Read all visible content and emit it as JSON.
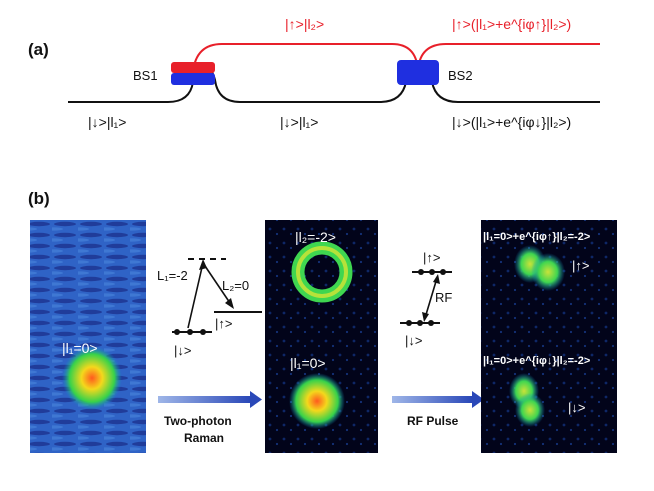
{
  "panel_a": {
    "tag": "(a)",
    "bs1": "BS1",
    "bs2": "BS2",
    "upper_mid": "|↑>|l₂>",
    "upper_right": "|↑>(|l₁>+e^{iφ↑}|l₂>)",
    "lower_left": "|↓>|l₁>",
    "lower_mid": "|↓>|l₁>",
    "lower_right": "|↓>(|l₁>+e^{iφ↓}|l₂>)"
  },
  "panel_b": {
    "tag": "(b)",
    "img1_label": "|l₁=0>",
    "level_l1": "L₁=-2",
    "level_l2": "L₂=0",
    "level_up": "|↑>",
    "level_down": "|↓>",
    "arrow1_line1": "Two-photon",
    "arrow1_line2": "Raman",
    "img2_top": "|l₂=-2>",
    "img2_bottom": "|l₁=0>",
    "rf_up": "|↑>",
    "rf": "RF",
    "rf_down": "|↓>",
    "arrow2_label": "RF Pulse",
    "img3_top": "|l₁=0>+e^{iφ↑}|l₂=-2>",
    "img3_top_spin": "|↑>",
    "img3_bottom": "|l₁=0>+e^{iφ↓}|l₂=-2>",
    "img3_bottom_spin": "|↓>"
  },
  "colors": {
    "red": "#e8202a",
    "blue": "#1f2fe0",
    "black": "#111111",
    "arrow_blue": "#2f4fb0"
  }
}
